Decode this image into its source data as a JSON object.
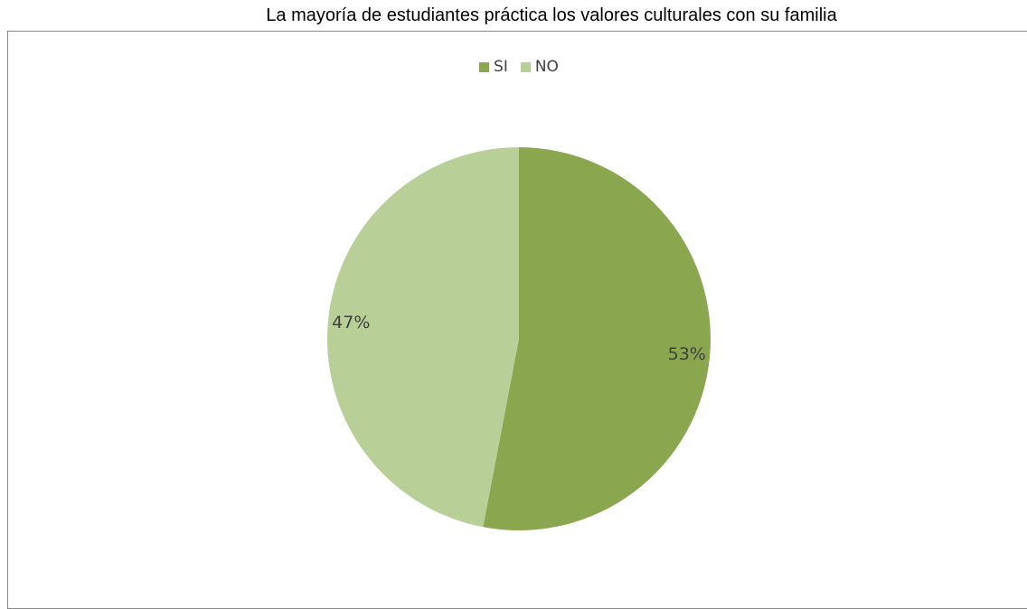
{
  "title": "La mayoría de estudiantes práctica  los valores culturales con su familia",
  "legend": {
    "items": [
      {
        "label": "SI",
        "color": "#8aa750"
      },
      {
        "label": "NO",
        "color": "#b9cf98"
      }
    ],
    "position": "top"
  },
  "chart_data": {
    "type": "pie",
    "title": "La mayoría de estudiantes práctica  los valores culturales con su familia",
    "categories": [
      "SI",
      "NO"
    ],
    "values": [
      53,
      47
    ],
    "data_labels": [
      "53%",
      "47%"
    ],
    "colors": [
      "#8aa750",
      "#b9cf98"
    ],
    "start_angle_deg": 0,
    "direction": "clockwise",
    "legend": "top"
  }
}
